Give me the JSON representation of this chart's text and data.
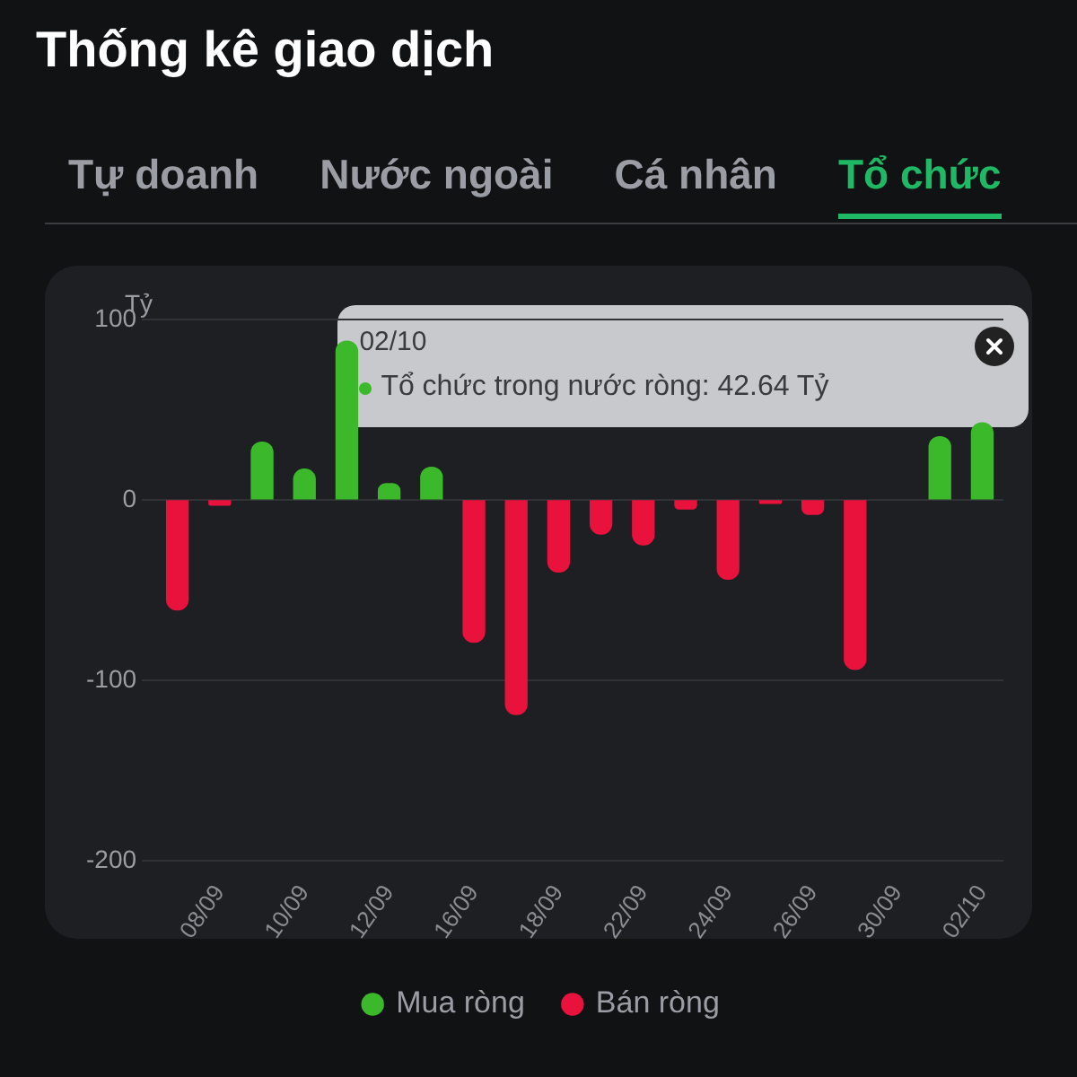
{
  "chart_data": {
    "type": "bar",
    "title": "Thống kê giao dịch",
    "subtitle": "Tổ chức",
    "ylabel": "Tỷ",
    "categories": [
      null,
      "08/09",
      null,
      "10/09",
      null,
      "12/09",
      null,
      "16/09",
      null,
      "18/09",
      null,
      "22/09",
      null,
      "24/09",
      null,
      "26/09",
      null,
      "30/09",
      null,
      "02/10"
    ],
    "series": [
      {
        "name": "Mua ròng",
        "color": "#3cb82b",
        "values": [
          null,
          null,
          32,
          17,
          88,
          9,
          18,
          null,
          null,
          null,
          null,
          null,
          null,
          null,
          null,
          null,
          null,
          null,
          35,
          42.64
        ]
      },
      {
        "name": "Bán ròng",
        "color": "#e8123d",
        "values": [
          -61,
          -3,
          null,
          null,
          null,
          null,
          null,
          -79,
          -119,
          -40,
          -19,
          -25,
          -5,
          -44,
          -2,
          -8,
          -94,
          null,
          null,
          null
        ]
      }
    ],
    "stacked": true,
    "ylim": [
      -200,
      100
    ],
    "yticks": [
      -200,
      -100,
      0,
      100
    ],
    "grid": "y",
    "legend": "bottom",
    "annotations": [
      "Tự doanh",
      "Nước ngoài",
      "Cá nhân",
      "02/10",
      "Tổ chức trong nước ròng: 42.64 Tỷ"
    ]
  }
}
